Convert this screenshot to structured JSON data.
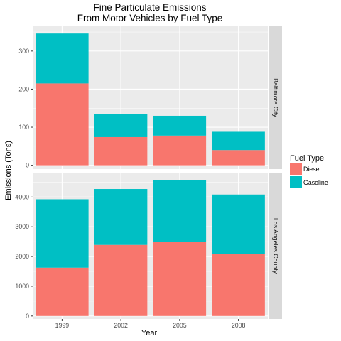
{
  "chart_data": {
    "type": "bar",
    "stacked": true,
    "faceted": true,
    "title": "Fine Particulate Emissions",
    "subtitle": "From Motor Vehicles by Fuel Type",
    "xlabel": "Year",
    "ylabel": "Emissions (Tons)",
    "categories": [
      "1999",
      "2002",
      "2005",
      "2008"
    ],
    "legend": {
      "title": "Fuel Type",
      "position": "right",
      "entries": [
        "Diesel",
        "Gasoline"
      ]
    },
    "colors": {
      "Diesel": "#F8766D",
      "Gasoline": "#00BFC4",
      "panel_bg": "#EBEBEB",
      "strip_bg": "#D9D9D9"
    },
    "grid": true,
    "facets": [
      {
        "label": "Baltimore City",
        "ylim": [
          -10,
          365
        ],
        "yticks": [
          0,
          100,
          200,
          300
        ],
        "series": [
          {
            "name": "Diesel",
            "values": [
              215,
              74,
              78,
              40
            ]
          },
          {
            "name": "Gasoline",
            "values": [
              131,
              61,
              52,
              48
            ]
          }
        ]
      },
      {
        "label": "Los Angeles County",
        "ylim": [
          -100,
          4820
        ],
        "yticks": [
          0,
          1000,
          2000,
          3000,
          4000
        ],
        "series": [
          {
            "name": "Diesel",
            "values": [
              1625,
              2390,
              2495,
              2095
            ]
          },
          {
            "name": "Gasoline",
            "values": [
              2300,
              1880,
              2085,
              1990
            ]
          }
        ]
      }
    ]
  }
}
